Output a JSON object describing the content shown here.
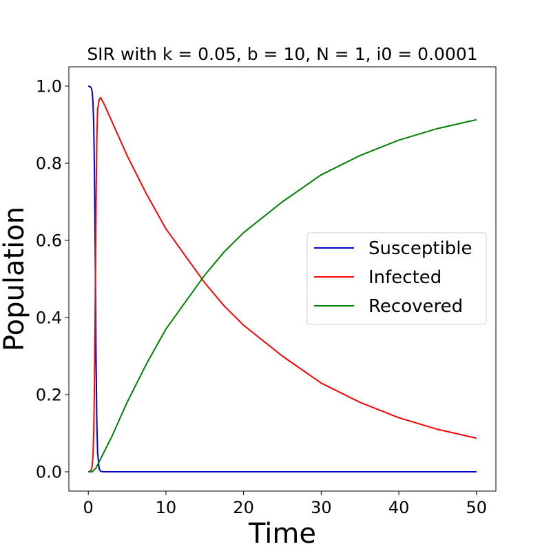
{
  "chart_data": {
    "type": "line",
    "title": "SIR with k = 0.05, b = 10, N = 1, i0 = 0.0001",
    "xlabel": "Time",
    "ylabel": "Population",
    "xlim": [
      -2.5,
      52.5
    ],
    "ylim": [
      -0.05,
      1.05
    ],
    "xticks": [
      0,
      10,
      20,
      30,
      40,
      50
    ],
    "xtick_labels": [
      "0",
      "10",
      "20",
      "30",
      "40",
      "50"
    ],
    "yticks": [
      0.0,
      0.2,
      0.4,
      0.6,
      0.8,
      1.0
    ],
    "ytick_labels": [
      "0.0",
      "0.2",
      "0.4",
      "0.6",
      "0.8",
      "1.0"
    ],
    "grid": false,
    "legend_position": "center-right",
    "params": {
      "k": 0.05,
      "b": 10,
      "N": 1,
      "i0": 0.0001,
      "t_start": 0,
      "t_end": 50
    },
    "series": [
      {
        "name": "Susceptible",
        "color": "#0000cc",
        "x": [
          0,
          0.2,
          0.4,
          0.5,
          0.6,
          0.7,
          0.8,
          0.9,
          1.0,
          1.1,
          1.2,
          1.4,
          1.6,
          2.0,
          5,
          10,
          20,
          30,
          40,
          50
        ],
        "values": [
          0.9999,
          0.9993,
          0.9945,
          0.985,
          0.96,
          0.9,
          0.77,
          0.55,
          0.3,
          0.13,
          0.05,
          0.008,
          0.001,
          0.0,
          0.0,
          0.0,
          0.0,
          0.0,
          0.0,
          0.0
        ]
      },
      {
        "name": "Infected",
        "color": "#ff0000",
        "x": [
          0,
          0.2,
          0.4,
          0.5,
          0.6,
          0.7,
          0.8,
          0.9,
          1.0,
          1.1,
          1.2,
          1.4,
          1.6,
          2,
          3,
          5,
          7.5,
          10,
          12.5,
          15,
          17.5,
          20,
          25,
          30,
          35,
          40,
          45,
          50
        ],
        "values": [
          0.0001,
          0.0007,
          0.0055,
          0.015,
          0.04,
          0.1,
          0.23,
          0.45,
          0.69,
          0.86,
          0.94,
          0.965,
          0.97,
          0.955,
          0.91,
          0.82,
          0.72,
          0.63,
          0.56,
          0.49,
          0.43,
          0.38,
          0.3,
          0.23,
          0.18,
          0.14,
          0.11,
          0.087
        ]
      },
      {
        "name": "Recovered",
        "color": "#008000",
        "x": [
          0,
          0.5,
          1,
          1.5,
          2,
          3,
          5,
          7.5,
          10,
          12.5,
          15,
          17.5,
          20,
          25,
          30,
          35,
          40,
          45,
          50
        ],
        "values": [
          0.0,
          0.0,
          0.01,
          0.03,
          0.05,
          0.09,
          0.18,
          0.28,
          0.37,
          0.44,
          0.51,
          0.57,
          0.62,
          0.7,
          0.77,
          0.82,
          0.86,
          0.89,
          0.913
        ]
      }
    ]
  }
}
